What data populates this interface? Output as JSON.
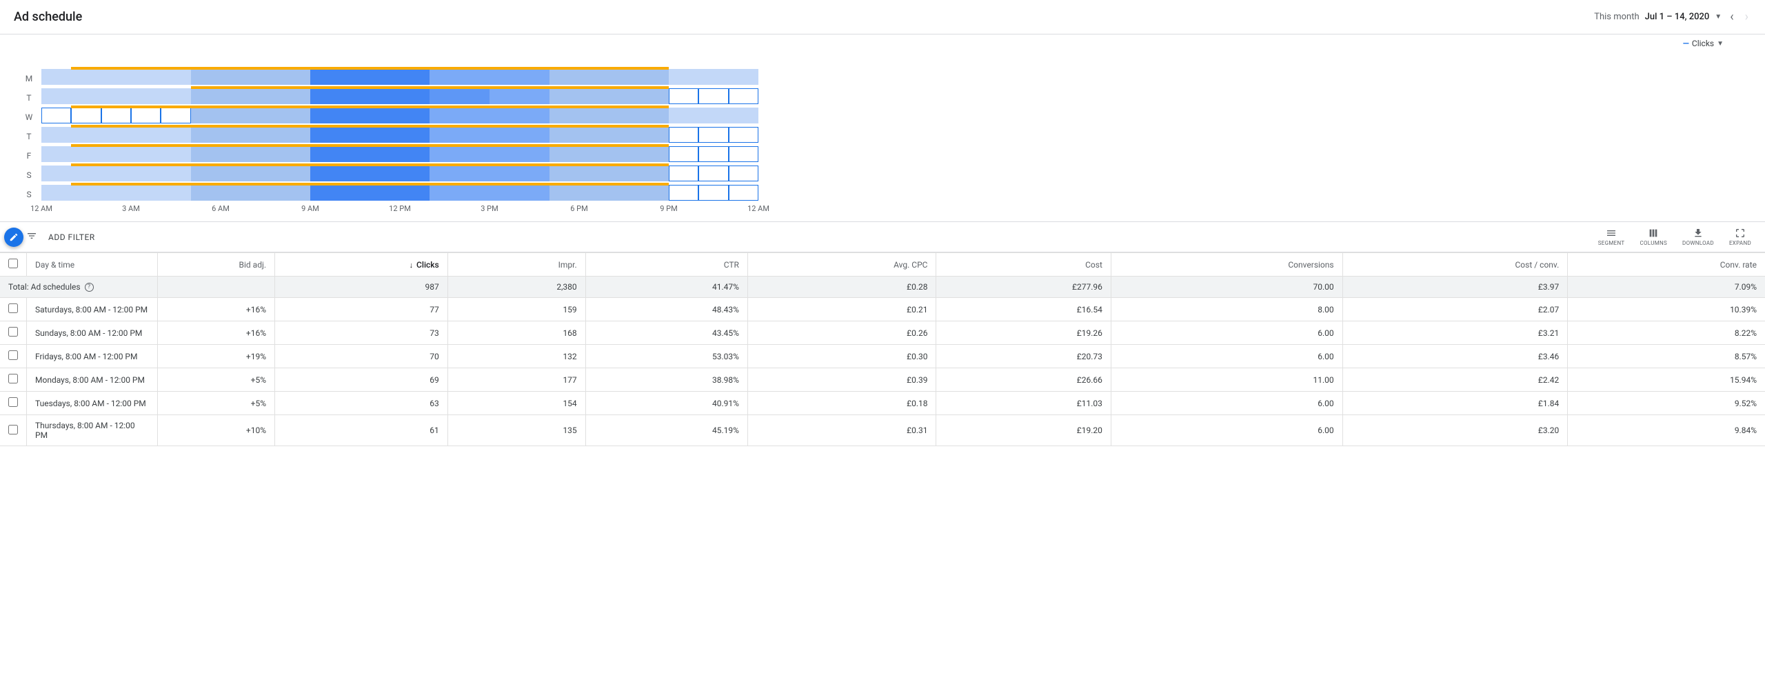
{
  "header": {
    "title": "Ad schedule",
    "date_label": "This month",
    "date_range": "Jul 1 – 14, 2020"
  },
  "metric": {
    "prefix": "—",
    "label": "Clicks"
  },
  "heatmap": {
    "day_labels": [
      "M",
      "T",
      "W",
      "T",
      "F",
      "S",
      "S"
    ],
    "time_labels": [
      "12 AM",
      "3 AM",
      "6 AM",
      "9 AM",
      "12 PM",
      "3 PM",
      "6 PM",
      "9 PM",
      "12 AM"
    ],
    "hours": 24,
    "colors": {
      "scale": [
        "#e8f0fe",
        "#c3d8f8",
        "#a3c2f0",
        "#7baaf7",
        "#5e97f6",
        "#4285f4"
      ],
      "outlined_bg": "#ffffff",
      "schedule_bar": "#f9ab00"
    },
    "rows": [
      {
        "cells": [
          {
            "v": 1
          },
          {
            "v": 1
          },
          {
            "v": 1
          },
          {
            "v": 1
          },
          {
            "v": 1
          },
          {
            "v": 2
          },
          {
            "v": 2
          },
          {
            "v": 2
          },
          {
            "v": 2
          },
          {
            "v": 5
          },
          {
            "v": 5
          },
          {
            "v": 5
          },
          {
            "v": 5
          },
          {
            "v": 3
          },
          {
            "v": 3
          },
          {
            "v": 3
          },
          {
            "v": 3
          },
          {
            "v": 2
          },
          {
            "v": 2
          },
          {
            "v": 2
          },
          {
            "v": 2
          },
          {
            "v": 1
          },
          {
            "v": 1
          },
          {
            "v": 1
          }
        ],
        "schedule": {
          "start": 1,
          "end": 21
        }
      },
      {
        "cells": [
          {
            "v": 1
          },
          {
            "v": 1
          },
          {
            "v": 1
          },
          {
            "v": 1
          },
          {
            "v": 1
          },
          {
            "v": 2
          },
          {
            "v": 2
          },
          {
            "v": 2
          },
          {
            "v": 2
          },
          {
            "v": 5
          },
          {
            "v": 5
          },
          {
            "v": 5
          },
          {
            "v": 5
          },
          {
            "v": 4
          },
          {
            "v": 4
          },
          {
            "v": 3
          },
          {
            "v": 3
          },
          {
            "v": 2
          },
          {
            "v": 2
          },
          {
            "v": 2
          },
          {
            "v": 2
          },
          {
            "v": -1
          },
          {
            "v": -1
          },
          {
            "v": -1
          }
        ],
        "schedule": {
          "start": 5,
          "end": 21
        }
      },
      {
        "cells": [
          {
            "v": -1
          },
          {
            "v": -1
          },
          {
            "v": -1
          },
          {
            "v": -1
          },
          {
            "v": -1
          },
          {
            "v": 2
          },
          {
            "v": 2
          },
          {
            "v": 2
          },
          {
            "v": 2
          },
          {
            "v": 5
          },
          {
            "v": 5
          },
          {
            "v": 5
          },
          {
            "v": 5
          },
          {
            "v": 3
          },
          {
            "v": 3
          },
          {
            "v": 3
          },
          {
            "v": 3
          },
          {
            "v": 2
          },
          {
            "v": 2
          },
          {
            "v": 2
          },
          {
            "v": 2
          },
          {
            "v": 1
          },
          {
            "v": 1
          },
          {
            "v": 1
          }
        ],
        "schedule": {
          "start": 1,
          "end": 21
        }
      },
      {
        "cells": [
          {
            "v": 1
          },
          {
            "v": 1
          },
          {
            "v": 1
          },
          {
            "v": 1
          },
          {
            "v": 1
          },
          {
            "v": 2
          },
          {
            "v": 2
          },
          {
            "v": 2
          },
          {
            "v": 2
          },
          {
            "v": 5
          },
          {
            "v": 5
          },
          {
            "v": 5
          },
          {
            "v": 5
          },
          {
            "v": 3
          },
          {
            "v": 3
          },
          {
            "v": 3
          },
          {
            "v": 3
          },
          {
            "v": 2
          },
          {
            "v": 2
          },
          {
            "v": 2
          },
          {
            "v": 2
          },
          {
            "v": -1
          },
          {
            "v": -1
          },
          {
            "v": -1
          }
        ],
        "schedule": {
          "start": 1,
          "end": 21
        }
      },
      {
        "cells": [
          {
            "v": 1
          },
          {
            "v": 1
          },
          {
            "v": 1
          },
          {
            "v": 1
          },
          {
            "v": 1
          },
          {
            "v": 2
          },
          {
            "v": 2
          },
          {
            "v": 2
          },
          {
            "v": 2
          },
          {
            "v": 5
          },
          {
            "v": 5
          },
          {
            "v": 5
          },
          {
            "v": 5
          },
          {
            "v": 3
          },
          {
            "v": 3
          },
          {
            "v": 3
          },
          {
            "v": 3
          },
          {
            "v": 2
          },
          {
            "v": 2
          },
          {
            "v": 2
          },
          {
            "v": 2
          },
          {
            "v": -1
          },
          {
            "v": -1
          },
          {
            "v": -1
          }
        ],
        "schedule": {
          "start": 1,
          "end": 21
        }
      },
      {
        "cells": [
          {
            "v": 1
          },
          {
            "v": 1
          },
          {
            "v": 1
          },
          {
            "v": 1
          },
          {
            "v": 1
          },
          {
            "v": 2
          },
          {
            "v": 2
          },
          {
            "v": 2
          },
          {
            "v": 2
          },
          {
            "v": 5
          },
          {
            "v": 5
          },
          {
            "v": 5
          },
          {
            "v": 5
          },
          {
            "v": 3
          },
          {
            "v": 3
          },
          {
            "v": 3
          },
          {
            "v": 3
          },
          {
            "v": 2
          },
          {
            "v": 2
          },
          {
            "v": 2
          },
          {
            "v": 2
          },
          {
            "v": -1
          },
          {
            "v": -1
          },
          {
            "v": -1
          }
        ],
        "schedule": {
          "start": 1,
          "end": 21
        }
      },
      {
        "cells": [
          {
            "v": 1
          },
          {
            "v": 1
          },
          {
            "v": 1
          },
          {
            "v": 1
          },
          {
            "v": 1
          },
          {
            "v": 2
          },
          {
            "v": 2
          },
          {
            "v": 2
          },
          {
            "v": 2
          },
          {
            "v": 5
          },
          {
            "v": 5
          },
          {
            "v": 5
          },
          {
            "v": 5
          },
          {
            "v": 3
          },
          {
            "v": 3
          },
          {
            "v": 3
          },
          {
            "v": 3
          },
          {
            "v": 2
          },
          {
            "v": 2
          },
          {
            "v": 2
          },
          {
            "v": 2
          },
          {
            "v": -1
          },
          {
            "v": -1
          },
          {
            "v": -1
          }
        ],
        "schedule": {
          "start": 1,
          "end": 21
        }
      }
    ]
  },
  "toolbar": {
    "add_filter": "ADD FILTER",
    "actions": {
      "segment": "SEGMENT",
      "columns": "COLUMNS",
      "download": "DOWNLOAD",
      "expand": "EXPAND"
    }
  },
  "table": {
    "columns": [
      {
        "label": "Day & time",
        "align": "left"
      },
      {
        "label": "Bid adj.",
        "align": "right"
      },
      {
        "label": "Clicks",
        "align": "right",
        "sorted": "desc"
      },
      {
        "label": "Impr.",
        "align": "right"
      },
      {
        "label": "CTR",
        "align": "right"
      },
      {
        "label": "Avg. CPC",
        "align": "right"
      },
      {
        "label": "Cost",
        "align": "right"
      },
      {
        "label": "Conversions",
        "align": "right"
      },
      {
        "label": "Cost / conv.",
        "align": "right"
      },
      {
        "label": "Conv. rate",
        "align": "right"
      }
    ],
    "totals_label": "Total: Ad schedules",
    "totals": [
      "",
      "987",
      "2,380",
      "41.47%",
      "£0.28",
      "£277.96",
      "70.00",
      "£3.97",
      "7.09%"
    ],
    "rows": [
      {
        "daytime": "Saturdays, 8:00 AM - 12:00 PM",
        "bidadj": "+16%",
        "clicks": "77",
        "impr": "159",
        "ctr": "48.43%",
        "cpc": "£0.21",
        "cost": "£16.54",
        "conv": "8.00",
        "costconv": "£2.07",
        "convrate": "10.39%"
      },
      {
        "daytime": "Sundays, 8:00 AM - 12:00 PM",
        "bidadj": "+16%",
        "clicks": "73",
        "impr": "168",
        "ctr": "43.45%",
        "cpc": "£0.26",
        "cost": "£19.26",
        "conv": "6.00",
        "costconv": "£3.21",
        "convrate": "8.22%"
      },
      {
        "daytime": "Fridays, 8:00 AM - 12:00 PM",
        "bidadj": "+19%",
        "clicks": "70",
        "impr": "132",
        "ctr": "53.03%",
        "cpc": "£0.30",
        "cost": "£20.73",
        "conv": "6.00",
        "costconv": "£3.46",
        "convrate": "8.57%"
      },
      {
        "daytime": "Mondays, 8:00 AM - 12:00 PM",
        "bidadj": "+5%",
        "clicks": "69",
        "impr": "177",
        "ctr": "38.98%",
        "cpc": "£0.39",
        "cost": "£26.66",
        "conv": "11.00",
        "costconv": "£2.42",
        "convrate": "15.94%"
      },
      {
        "daytime": "Tuesdays, 8:00 AM - 12:00 PM",
        "bidadj": "+5%",
        "clicks": "63",
        "impr": "154",
        "ctr": "40.91%",
        "cpc": "£0.18",
        "cost": "£11.03",
        "conv": "6.00",
        "costconv": "£1.84",
        "convrate": "9.52%"
      },
      {
        "daytime": "Thursdays, 8:00 AM - 12:00 PM",
        "bidadj": "+10%",
        "clicks": "61",
        "impr": "135",
        "ctr": "45.19%",
        "cpc": "£0.31",
        "cost": "£19.20",
        "conv": "6.00",
        "costconv": "£3.20",
        "convrate": "9.84%"
      }
    ]
  }
}
